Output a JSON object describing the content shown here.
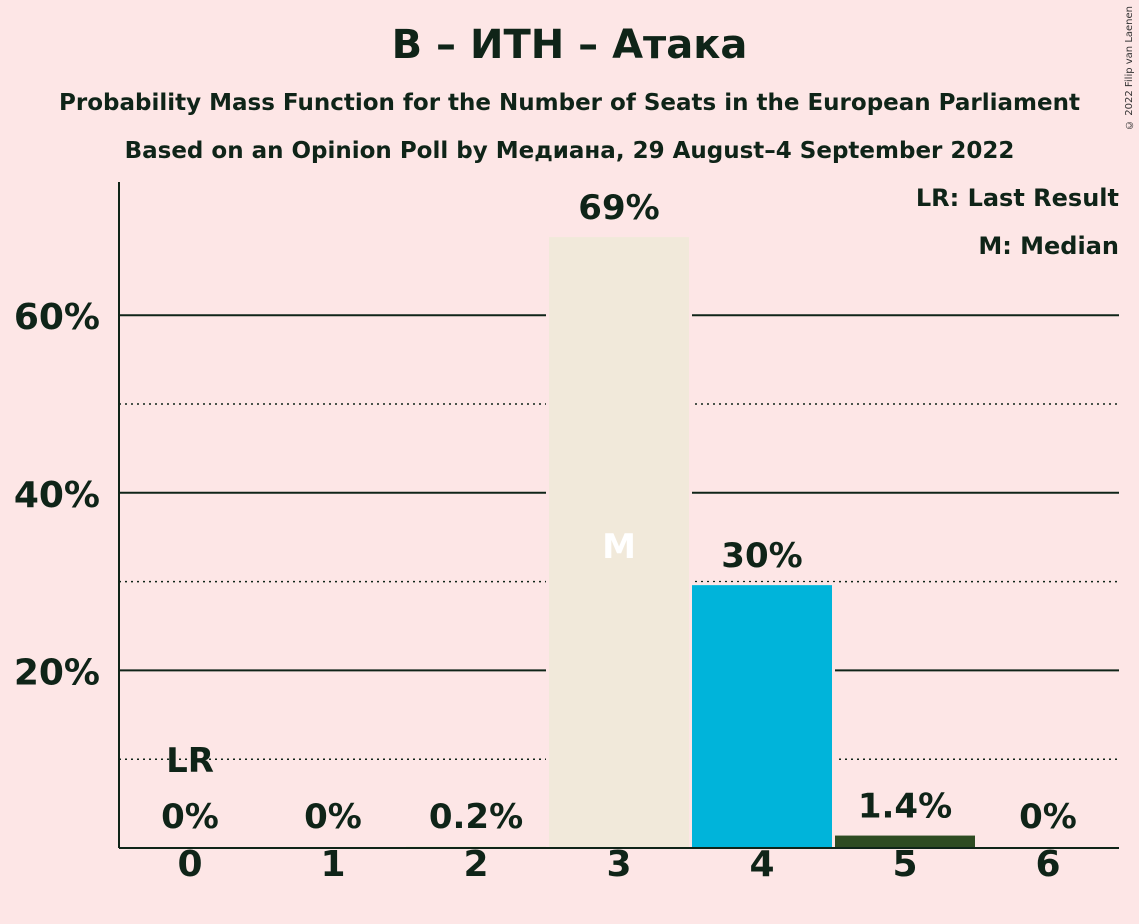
{
  "title": "В – ИТН – Атака",
  "subtitle": "Probability Mass Function for the Number of Seats in the European Parliament",
  "subtitle2": "Based on an Opinion Poll by Медиана, 29 August–4 September 2022",
  "copyright": "© 2022 Filip van Laenen",
  "legend": {
    "last_result": "LR: Last Result",
    "median": "M: Median"
  },
  "colors": {
    "background": "#FDE6E6",
    "text": "#0F2418",
    "bar_median": "#F1E9DA",
    "bar_4": "#00B4DA",
    "bar_5": "#2E4B22",
    "median_label": "#FFFFFF"
  },
  "chart_data": {
    "type": "bar",
    "categories": [
      "0",
      "1",
      "2",
      "3",
      "4",
      "5",
      "6"
    ],
    "values": [
      0,
      0,
      0.2,
      69,
      30,
      1.4,
      0
    ],
    "plot_values": [
      0,
      0,
      0.2,
      68.8,
      29.6,
      1.4,
      0
    ],
    "value_labels": [
      "0%",
      "0%",
      "0.2%",
      "69%",
      "30%",
      "1.4%",
      "0%"
    ],
    "bar_colors": [
      "#F1E9DA",
      "#F1E9DA",
      "#F1E9DA",
      "#F1E9DA",
      "#00B4DA",
      "#2E4B22",
      "#F1E9DA"
    ],
    "yticks": [
      20,
      40,
      60
    ],
    "ytick_labels": [
      "20%",
      "40%",
      "60%"
    ],
    "minor_gridlines": [
      10,
      30,
      50
    ],
    "ylim": [
      0,
      75
    ],
    "last_result_index": 0,
    "last_result_label": "LR",
    "median_index": 3,
    "median_label": "M",
    "grid": true,
    "legend_position": "top-right"
  }
}
